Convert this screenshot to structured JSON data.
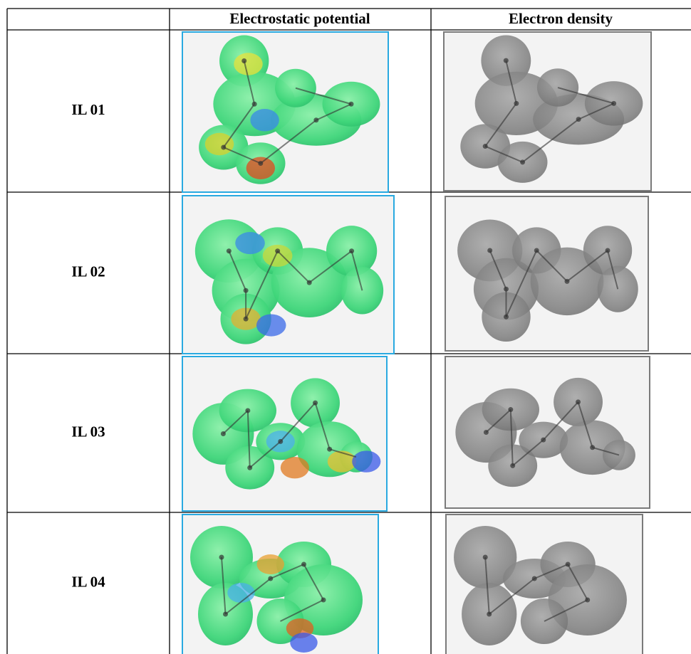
{
  "table": {
    "columns": [
      "Electrostatic potential",
      "Electron density"
    ],
    "rows": [
      "IL 01",
      "IL 02",
      "IL 03",
      "IL 04"
    ]
  }
}
